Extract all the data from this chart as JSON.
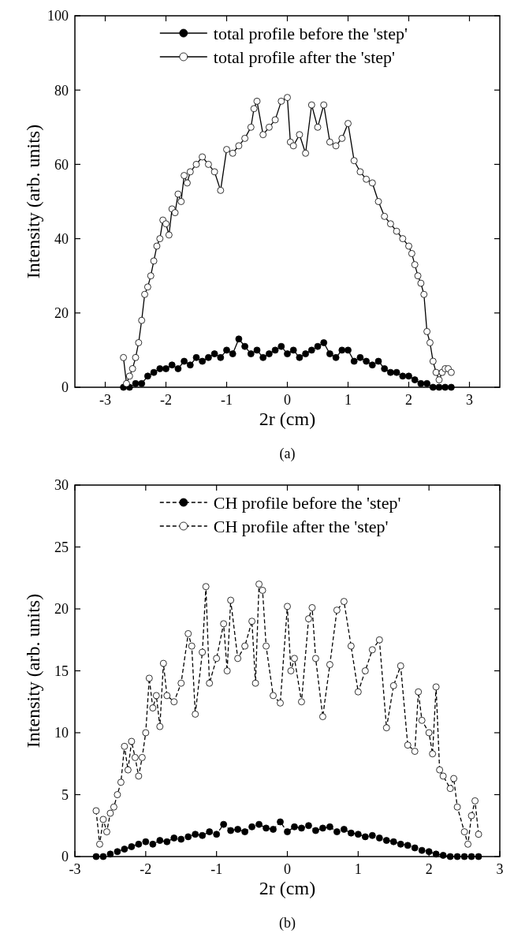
{
  "chart_data": [
    {
      "type": "line",
      "xlabel": "2r (cm)",
      "ylabel": "Intensity (arb. units)",
      "annotations": [
        "(a)"
      ],
      "xlim": [
        -3.5,
        3.5
      ],
      "xticks": [
        -3,
        -2,
        -1,
        0,
        1,
        2,
        3
      ],
      "ylim": [
        0,
        100
      ],
      "yticks": [
        0,
        20,
        40,
        60,
        80,
        100
      ],
      "legend": "top",
      "marker": "circle",
      "line_style": "solid",
      "series": [
        {
          "name": "total profile before the 'step'",
          "color": "#000000",
          "x": [
            -2.7,
            -2.6,
            -2.5,
            -2.4,
            -2.3,
            -2.2,
            -2.1,
            -2.0,
            -1.9,
            -1.8,
            -1.7,
            -1.6,
            -1.5,
            -1.4,
            -1.3,
            -1.2,
            -1.1,
            -1.0,
            -0.9,
            -0.8,
            -0.7,
            -0.6,
            -0.5,
            -0.4,
            -0.3,
            -0.2,
            -0.1,
            0.0,
            0.1,
            0.2,
            0.3,
            0.4,
            0.5,
            0.6,
            0.7,
            0.8,
            0.9,
            1.0,
            1.1,
            1.2,
            1.3,
            1.4,
            1.5,
            1.6,
            1.7,
            1.8,
            1.9,
            2.0,
            2.1,
            2.2,
            2.3,
            2.4,
            2.5,
            2.6,
            2.7
          ],
          "values": [
            0,
            0,
            1,
            1,
            3,
            4,
            5,
            5,
            6,
            5,
            7,
            6,
            8,
            7,
            8,
            9,
            8,
            10,
            9,
            13,
            11,
            9,
            10,
            8,
            9,
            10,
            11,
            9,
            10,
            8,
            9,
            10,
            11,
            12,
            9,
            8,
            10,
            10,
            7,
            8,
            7,
            6,
            7,
            5,
            4,
            4,
            3,
            3,
            2,
            1,
            1,
            0,
            0,
            0,
            0
          ]
        },
        {
          "name": "total profile after the 'step'",
          "color": "#ffffff",
          "x": [
            -2.7,
            -2.65,
            -2.6,
            -2.55,
            -2.5,
            -2.45,
            -2.4,
            -2.35,
            -2.3,
            -2.25,
            -2.2,
            -2.15,
            -2.1,
            -2.05,
            -2.0,
            -1.95,
            -1.9,
            -1.85,
            -1.8,
            -1.75,
            -1.7,
            -1.65,
            -1.6,
            -1.5,
            -1.4,
            -1.3,
            -1.2,
            -1.1,
            -1.0,
            -0.9,
            -0.8,
            -0.7,
            -0.6,
            -0.55,
            -0.5,
            -0.4,
            -0.3,
            -0.2,
            -0.1,
            0.0,
            0.05,
            0.1,
            0.2,
            0.3,
            0.4,
            0.5,
            0.6,
            0.7,
            0.8,
            0.9,
            1.0,
            1.1,
            1.2,
            1.3,
            1.4,
            1.5,
            1.6,
            1.7,
            1.8,
            1.9,
            2.0,
            2.05,
            2.1,
            2.15,
            2.2,
            2.25,
            2.3,
            2.35,
            2.4,
            2.45,
            2.5,
            2.55,
            2.6,
            2.65,
            2.7
          ],
          "values": [
            8,
            1,
            3,
            5,
            8,
            12,
            18,
            25,
            27,
            30,
            34,
            38,
            40,
            45,
            44,
            41,
            48,
            47,
            52,
            50,
            57,
            55,
            58,
            60,
            62,
            60,
            58,
            53,
            64,
            63,
            65,
            67,
            70,
            75,
            77,
            68,
            70,
            72,
            77,
            78,
            66,
            65,
            68,
            63,
            76,
            70,
            76,
            66,
            65,
            67,
            71,
            61,
            58,
            56,
            55,
            50,
            46,
            44,
            42,
            40,
            38,
            36,
            33,
            30,
            28,
            25,
            15,
            12,
            7,
            4,
            2,
            4,
            5,
            5,
            4
          ]
        }
      ]
    },
    {
      "type": "line",
      "xlabel": "2r (cm)",
      "ylabel": "Intensity (arb. units)",
      "annotations": [
        "(b)"
      ],
      "xlim": [
        -3,
        3
      ],
      "xticks": [
        -3,
        -2,
        -1,
        0,
        1,
        2,
        3
      ],
      "ylim": [
        0,
        30
      ],
      "yticks": [
        0,
        5,
        10,
        15,
        20,
        25,
        30
      ],
      "legend": "top",
      "marker": "circle",
      "line_style": "dashed",
      "series": [
        {
          "name": "CH profile before the 'step'",
          "color": "#000000",
          "x": [
            -2.7,
            -2.6,
            -2.5,
            -2.4,
            -2.3,
            -2.2,
            -2.1,
            -2.0,
            -1.9,
            -1.8,
            -1.7,
            -1.6,
            -1.5,
            -1.4,
            -1.3,
            -1.2,
            -1.1,
            -1.0,
            -0.9,
            -0.8,
            -0.7,
            -0.6,
            -0.5,
            -0.4,
            -0.3,
            -0.2,
            -0.1,
            0.0,
            0.1,
            0.2,
            0.3,
            0.4,
            0.5,
            0.6,
            0.7,
            0.8,
            0.9,
            1.0,
            1.1,
            1.2,
            1.3,
            1.4,
            1.5,
            1.6,
            1.7,
            1.8,
            1.9,
            2.0,
            2.1,
            2.2,
            2.3,
            2.4,
            2.5,
            2.6,
            2.7
          ],
          "values": [
            0,
            0,
            0.2,
            0.4,
            0.6,
            0.8,
            1.0,
            1.2,
            1.0,
            1.3,
            1.2,
            1.5,
            1.4,
            1.6,
            1.8,
            1.7,
            2.0,
            1.8,
            2.6,
            2.1,
            2.2,
            2.0,
            2.4,
            2.6,
            2.3,
            2.2,
            2.8,
            2.0,
            2.4,
            2.3,
            2.5,
            2.1,
            2.3,
            2.4,
            2.0,
            2.2,
            1.9,
            1.8,
            1.6,
            1.7,
            1.5,
            1.3,
            1.2,
            1.0,
            0.9,
            0.7,
            0.5,
            0.4,
            0.2,
            0.1,
            0,
            0,
            0,
            0,
            0
          ]
        },
        {
          "name": "CH profile after the 'step'",
          "color": "#ffffff",
          "x": [
            -2.7,
            -2.65,
            -2.6,
            -2.55,
            -2.5,
            -2.45,
            -2.4,
            -2.35,
            -2.3,
            -2.25,
            -2.2,
            -2.15,
            -2.1,
            -2.05,
            -2.0,
            -1.95,
            -1.9,
            -1.85,
            -1.8,
            -1.75,
            -1.7,
            -1.6,
            -1.5,
            -1.4,
            -1.35,
            -1.3,
            -1.2,
            -1.15,
            -1.1,
            -1.0,
            -0.9,
            -0.85,
            -0.8,
            -0.7,
            -0.6,
            -0.5,
            -0.45,
            -0.4,
            -0.35,
            -0.3,
            -0.2,
            -0.1,
            0.0,
            0.05,
            0.1,
            0.2,
            0.3,
            0.35,
            0.4,
            0.5,
            0.6,
            0.7,
            0.8,
            0.9,
            1.0,
            1.1,
            1.2,
            1.3,
            1.4,
            1.5,
            1.6,
            1.7,
            1.8,
            1.85,
            1.9,
            2.0,
            2.05,
            2.1,
            2.15,
            2.2,
            2.3,
            2.35,
            2.4,
            2.5,
            2.55,
            2.6,
            2.65,
            2.7
          ],
          "values": [
            3.7,
            1,
            3,
            2,
            3.5,
            4,
            5,
            6,
            8.9,
            7,
            9.3,
            8,
            6.5,
            8,
            10,
            14.4,
            12,
            13,
            10.5,
            15.6,
            13,
            12.5,
            14,
            18,
            17,
            11.5,
            16.5,
            21.8,
            14,
            16,
            18.8,
            15,
            20.7,
            16,
            17,
            19,
            14,
            22,
            21.5,
            17,
            13,
            12.4,
            20.2,
            15,
            16,
            12.5,
            19.2,
            20.1,
            16,
            11.3,
            15.5,
            19.9,
            20.6,
            17,
            13.3,
            15,
            16.7,
            17.5,
            10.4,
            13.8,
            15.4,
            9,
            8.5,
            13.3,
            11,
            10,
            8.3,
            13.7,
            7,
            6.5,
            5.5,
            6.3,
            4,
            2,
            1,
            3.3,
            4.5,
            1.8
          ]
        }
      ]
    }
  ]
}
